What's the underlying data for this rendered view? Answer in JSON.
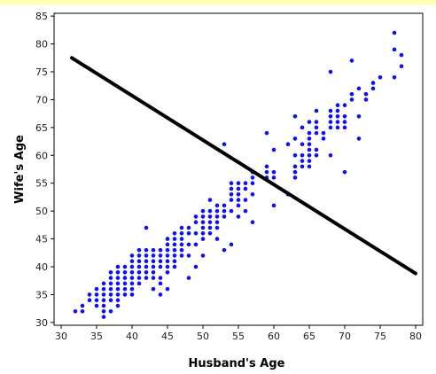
{
  "chart_data": {
    "type": "scatter",
    "xlabel": "Husband's Age",
    "ylabel": "Wife's Age",
    "xlim": [
      29,
      81
    ],
    "ylim": [
      29.5,
      85.5
    ],
    "xticks": [
      30,
      35,
      40,
      45,
      50,
      55,
      60,
      65,
      70,
      75,
      80
    ],
    "yticks": [
      30,
      35,
      40,
      45,
      50,
      55,
      60,
      65,
      70,
      75,
      80,
      85
    ],
    "grid": false,
    "colors": {
      "points": "#1010ee",
      "line": "#000000",
      "header_band": "#ffffb8"
    },
    "line": {
      "x": [
        31.5,
        80
      ],
      "y": [
        77.5,
        38.8
      ]
    },
    "points": [
      [
        32,
        32
      ],
      [
        33,
        32
      ],
      [
        33,
        33
      ],
      [
        34,
        34
      ],
      [
        34,
        35
      ],
      [
        35,
        33
      ],
      [
        35,
        34
      ],
      [
        35,
        35
      ],
      [
        35,
        36
      ],
      [
        36,
        31
      ],
      [
        36,
        32
      ],
      [
        36,
        33
      ],
      [
        36,
        34
      ],
      [
        36,
        35
      ],
      [
        36,
        36
      ],
      [
        36,
        37
      ],
      [
        37,
        32
      ],
      [
        37,
        34
      ],
      [
        37,
        35
      ],
      [
        37,
        36
      ],
      [
        37,
        37
      ],
      [
        37,
        38
      ],
      [
        37,
        39
      ],
      [
        38,
        33
      ],
      [
        38,
        34
      ],
      [
        38,
        35
      ],
      [
        38,
        36
      ],
      [
        38,
        37
      ],
      [
        38,
        38
      ],
      [
        38,
        39
      ],
      [
        38,
        40
      ],
      [
        39,
        35
      ],
      [
        39,
        36
      ],
      [
        39,
        37
      ],
      [
        39,
        38
      ],
      [
        39,
        39
      ],
      [
        39,
        40
      ],
      [
        40,
        35
      ],
      [
        40,
        36
      ],
      [
        40,
        37
      ],
      [
        40,
        38
      ],
      [
        40,
        39
      ],
      [
        40,
        40
      ],
      [
        40,
        41
      ],
      [
        40,
        42
      ],
      [
        41,
        37
      ],
      [
        41,
        38
      ],
      [
        41,
        39
      ],
      [
        41,
        40
      ],
      [
        41,
        41
      ],
      [
        41,
        42
      ],
      [
        41,
        43
      ],
      [
        42,
        38
      ],
      [
        42,
        39
      ],
      [
        42,
        40
      ],
      [
        42,
        41
      ],
      [
        42,
        42
      ],
      [
        42,
        43
      ],
      [
        42,
        47
      ],
      [
        43,
        36
      ],
      [
        43,
        38
      ],
      [
        43,
        39
      ],
      [
        43,
        40
      ],
      [
        43,
        41
      ],
      [
        43,
        42
      ],
      [
        43,
        43
      ],
      [
        44,
        35
      ],
      [
        44,
        37
      ],
      [
        44,
        38
      ],
      [
        44,
        40
      ],
      [
        44,
        41
      ],
      [
        44,
        42
      ],
      [
        44,
        43
      ],
      [
        45,
        36
      ],
      [
        45,
        39
      ],
      [
        45,
        40
      ],
      [
        45,
        41
      ],
      [
        45,
        42
      ],
      [
        45,
        43
      ],
      [
        45,
        44
      ],
      [
        45,
        45
      ],
      [
        46,
        40
      ],
      [
        46,
        41
      ],
      [
        46,
        42
      ],
      [
        46,
        43
      ],
      [
        46,
        44
      ],
      [
        46,
        45
      ],
      [
        46,
        46
      ],
      [
        47,
        42
      ],
      [
        47,
        43
      ],
      [
        47,
        44
      ],
      [
        47,
        45
      ],
      [
        47,
        46
      ],
      [
        47,
        47
      ],
      [
        48,
        38
      ],
      [
        48,
        42
      ],
      [
        48,
        44
      ],
      [
        48,
        46
      ],
      [
        48,
        47
      ],
      [
        49,
        40
      ],
      [
        49,
        44
      ],
      [
        49,
        46
      ],
      [
        49,
        48
      ],
      [
        49,
        49
      ],
      [
        50,
        42
      ],
      [
        50,
        45
      ],
      [
        50,
        46
      ],
      [
        50,
        47
      ],
      [
        50,
        48
      ],
      [
        50,
        49
      ],
      [
        50,
        50
      ],
      [
        51,
        46
      ],
      [
        51,
        47
      ],
      [
        51,
        48
      ],
      [
        51,
        49
      ],
      [
        51,
        50
      ],
      [
        51,
        52
      ],
      [
        52,
        45
      ],
      [
        52,
        47
      ],
      [
        52,
        48
      ],
      [
        52,
        49
      ],
      [
        52,
        50
      ],
      [
        52,
        51
      ],
      [
        53,
        43
      ],
      [
        53,
        49
      ],
      [
        53,
        50
      ],
      [
        53,
        51
      ],
      [
        53,
        62
      ],
      [
        54,
        44
      ],
      [
        54,
        50
      ],
      [
        54,
        52
      ],
      [
        54,
        53
      ],
      [
        54,
        54
      ],
      [
        54,
        55
      ],
      [
        55,
        49
      ],
      [
        55,
        51
      ],
      [
        55,
        52
      ],
      [
        55,
        53
      ],
      [
        55,
        54
      ],
      [
        55,
        55
      ],
      [
        56,
        50
      ],
      [
        56,
        52
      ],
      [
        56,
        54
      ],
      [
        56,
        55
      ],
      [
        57,
        48
      ],
      [
        57,
        53
      ],
      [
        57,
        55
      ],
      [
        57,
        56
      ],
      [
        57,
        57
      ],
      [
        59,
        56
      ],
      [
        59,
        57
      ],
      [
        59,
        58
      ],
      [
        59,
        64
      ],
      [
        60,
        51
      ],
      [
        60,
        56
      ],
      [
        60,
        57
      ],
      [
        60,
        61
      ],
      [
        62,
        53
      ],
      [
        62,
        62
      ],
      [
        63,
        56
      ],
      [
        63,
        57
      ],
      [
        63,
        58
      ],
      [
        63,
        60
      ],
      [
        63,
        63
      ],
      [
        63,
        67
      ],
      [
        64,
        58
      ],
      [
        64,
        59
      ],
      [
        64,
        60
      ],
      [
        64,
        62
      ],
      [
        64,
        65
      ],
      [
        65,
        58
      ],
      [
        65,
        59
      ],
      [
        65,
        60
      ],
      [
        65,
        61
      ],
      [
        65,
        62
      ],
      [
        65,
        63
      ],
      [
        65,
        64
      ],
      [
        65,
        66
      ],
      [
        66,
        60
      ],
      [
        66,
        61
      ],
      [
        66,
        64
      ],
      [
        66,
        65
      ],
      [
        66,
        66
      ],
      [
        66,
        68
      ],
      [
        67,
        63
      ],
      [
        67,
        64
      ],
      [
        68,
        60
      ],
      [
        68,
        65
      ],
      [
        68,
        66
      ],
      [
        68,
        67
      ],
      [
        68,
        68
      ],
      [
        68,
        75
      ],
      [
        69,
        65
      ],
      [
        69,
        66
      ],
      [
        69,
        67
      ],
      [
        69,
        68
      ],
      [
        69,
        69
      ],
      [
        70,
        57
      ],
      [
        70,
        65
      ],
      [
        70,
        66
      ],
      [
        70,
        67
      ],
      [
        70,
        69
      ],
      [
        71,
        70
      ],
      [
        71,
        71
      ],
      [
        71,
        77
      ],
      [
        72,
        63
      ],
      [
        72,
        67
      ],
      [
        72,
        72
      ],
      [
        73,
        70
      ],
      [
        73,
        71
      ],
      [
        74,
        72
      ],
      [
        74,
        73
      ],
      [
        75,
        74
      ],
      [
        77,
        74
      ],
      [
        77,
        79
      ],
      [
        77,
        82
      ],
      [
        78,
        76
      ],
      [
        78,
        78
      ]
    ]
  }
}
